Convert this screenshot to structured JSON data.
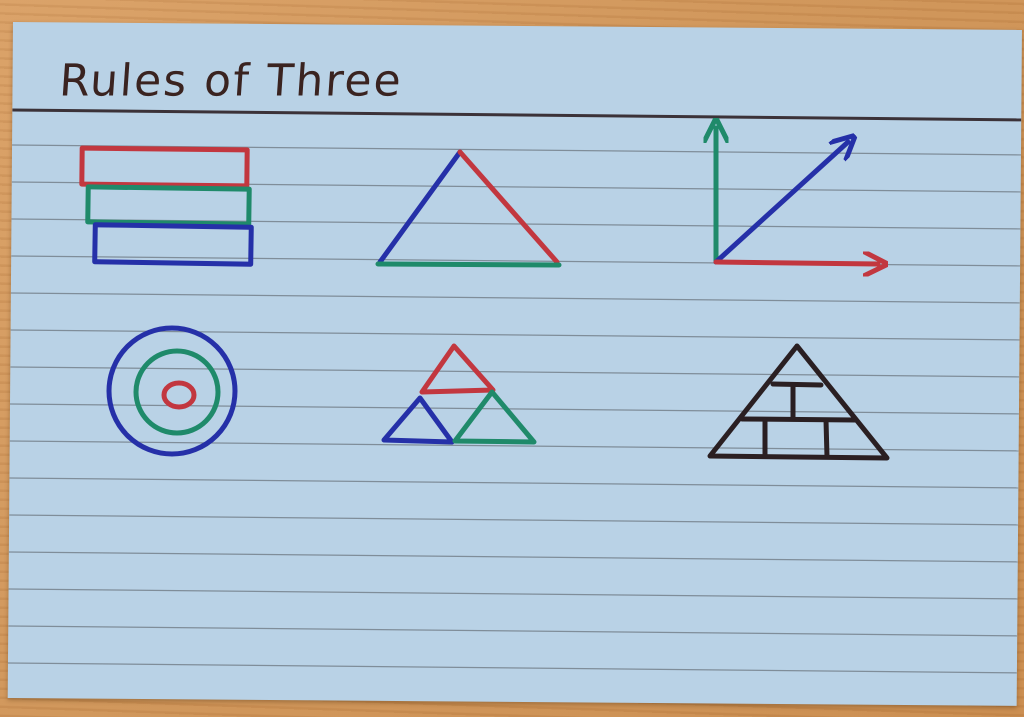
{
  "card": {
    "title": "Rules of Three"
  },
  "colors": {
    "ink_red": "#c2373f",
    "ink_green": "#1f8a6a",
    "ink_blue": "#2530a8",
    "ink_black": "#2a1f22",
    "card_blue": "#b9d2e6",
    "rule_line": "#7f8d99",
    "title_rule": "#3b3238"
  },
  "drawings": [
    {
      "name": "stacked-bars",
      "colors": [
        "red",
        "green",
        "blue"
      ]
    },
    {
      "name": "triangle",
      "colors": [
        "blue",
        "red",
        "green"
      ]
    },
    {
      "name": "axes",
      "colors": [
        "green",
        "blue",
        "red"
      ]
    },
    {
      "name": "target",
      "colors": [
        "blue",
        "green",
        "red"
      ]
    },
    {
      "name": "triforce",
      "colors": [
        "red",
        "blue",
        "green"
      ]
    },
    {
      "name": "pyramid",
      "colors": [
        "black"
      ]
    }
  ]
}
